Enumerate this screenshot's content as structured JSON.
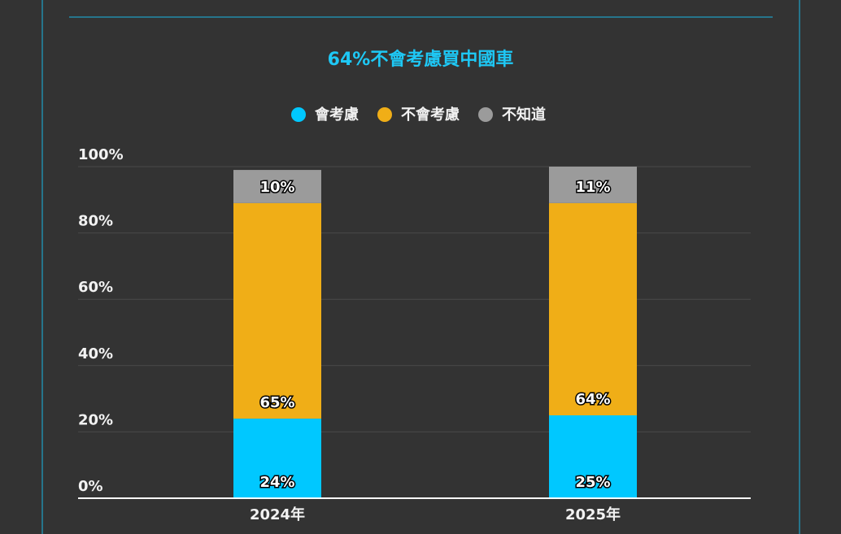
{
  "chart_data": {
    "type": "stacked_bar",
    "title": "64%不會考慮買中國車",
    "categories": [
      "2024年",
      "2025年"
    ],
    "series": [
      {
        "name": "會考慮",
        "color": "#00c8ff",
        "values": [
          24,
          25
        ],
        "value_labels": [
          "24%",
          "25%"
        ]
      },
      {
        "name": "不會考慮",
        "color": "#f0ae17",
        "values": [
          65,
          64
        ],
        "value_labels": [
          "65%",
          "64%"
        ]
      },
      {
        "name": "不知道",
        "color": "#9b9b9b",
        "values": [
          10,
          11
        ],
        "value_labels": [
          "10%",
          "11%"
        ]
      }
    ],
    "ylim": [
      0,
      100
    ],
    "yticks": [
      {
        "value": 0,
        "label": "0%"
      },
      {
        "value": 20,
        "label": "20%"
      },
      {
        "value": 40,
        "label": "40%"
      },
      {
        "value": 60,
        "label": "60%"
      },
      {
        "value": 80,
        "label": "80%"
      },
      {
        "value": 100,
        "label": "100%"
      }
    ],
    "grid": true,
    "legend": "top"
  }
}
